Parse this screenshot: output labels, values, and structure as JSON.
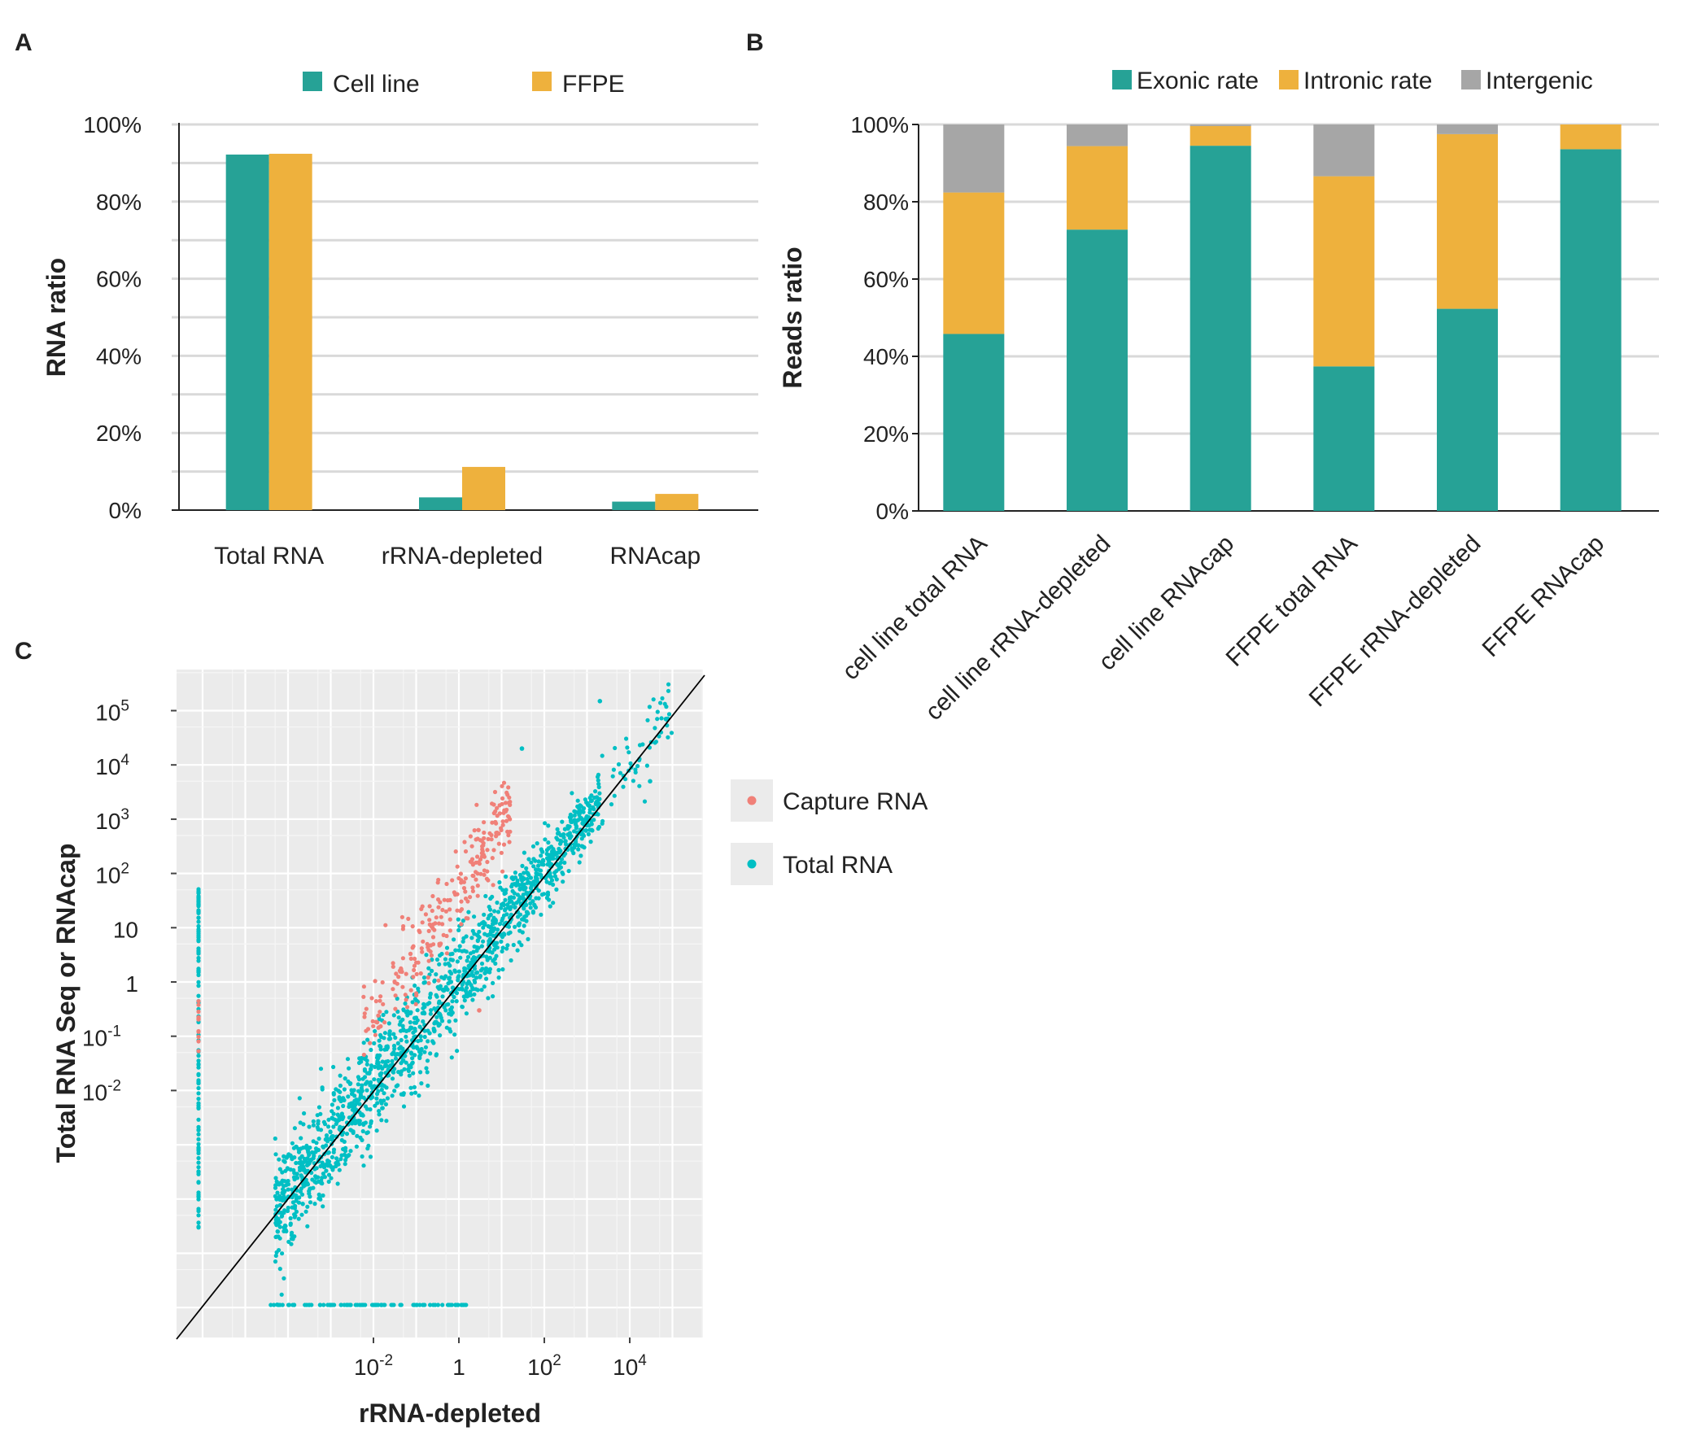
{
  "chart_data": [
    {
      "panel": "A",
      "type": "bar",
      "ylabel": "RNA ratio",
      "xlabel": "",
      "ylim": [
        0,
        100
      ],
      "yticks": [
        "0%",
        "20%",
        "40%",
        "60%",
        "80%",
        "100%"
      ],
      "grid": true,
      "legend_position": "top",
      "categories": [
        "Total RNA",
        "rRNA-depleted",
        "RNAcap"
      ],
      "series": [
        {
          "name": "Cell line",
          "color": "#26a296",
          "values": [
            92.2,
            3.3,
            2.2
          ]
        },
        {
          "name": "FFPE",
          "color": "#eeb13d",
          "values": [
            92.4,
            11.2,
            4.2
          ]
        }
      ]
    },
    {
      "panel": "B",
      "type": "bar",
      "stacked": true,
      "ylabel": "Reads ratio",
      "xlabel": "",
      "ylim": [
        0,
        100
      ],
      "yticks": [
        "0%",
        "20%",
        "40%",
        "60%",
        "80%",
        "100%"
      ],
      "grid": true,
      "legend_position": "top",
      "categories": [
        "cell line total RNA",
        "cell line rRNA-depleted",
        "cell line RNAcap",
        "FFPE total RNA",
        "FFPE rRNA-depleted",
        "FFPE RNAcap"
      ],
      "series": [
        {
          "name": "Exonic rate",
          "color": "#26a296",
          "values": [
            45.8,
            72.8,
            94.5,
            37.4,
            52.3,
            93.6
          ]
        },
        {
          "name": "Intronic rate",
          "color": "#eeb13d",
          "values": [
            36.6,
            21.6,
            5.1,
            49.2,
            45.2,
            6.4
          ]
        },
        {
          "name": "Intergenic",
          "color": "#a6a6a6",
          "values": [
            17.6,
            5.6,
            0.4,
            13.4,
            2.5,
            0.0
          ]
        }
      ]
    },
    {
      "panel": "C",
      "type": "scatter",
      "xlabel": "rRNA-depleted",
      "ylabel": "Total RNA Seq or RNAcap",
      "log_scale": true,
      "xlim": [
        1e-05,
        1000000
      ],
      "ylim": [
        1e-05,
        1000000
      ],
      "xticks": [
        "10-2",
        "1",
        "102",
        "104"
      ],
      "yticks": [
        "10-2",
        "10-1",
        "1",
        "10",
        "102",
        "103",
        "104",
        "105"
      ],
      "grid": true,
      "reference_line": "y = x",
      "legend_position": "right",
      "series": [
        {
          "name": "Capture RNA",
          "color": "#f08078",
          "trend": "above diagonal, x 0.01–10, y ~2 decades above x"
        },
        {
          "name": "Total RNA",
          "color": "#00bfc4",
          "trend": "along diagonal, x 0.0001–100000; zero-x column and zero-y row"
        }
      ],
      "highlight_points": [
        {
          "x": 2000,
          "y": 150000,
          "series": "Total RNA"
        },
        {
          "x": 30,
          "y": 20000,
          "series": "Total RNA"
        },
        {
          "x": 70000,
          "y": 70000,
          "series": "Total RNA"
        },
        {
          "x": 30000,
          "y": 5000,
          "series": "Total RNA"
        },
        {
          "x": 15,
          "y": 2000,
          "series": "Capture RNA"
        },
        {
          "x": 3,
          "y": 0.3,
          "series": "Capture RNA"
        }
      ]
    }
  ]
}
